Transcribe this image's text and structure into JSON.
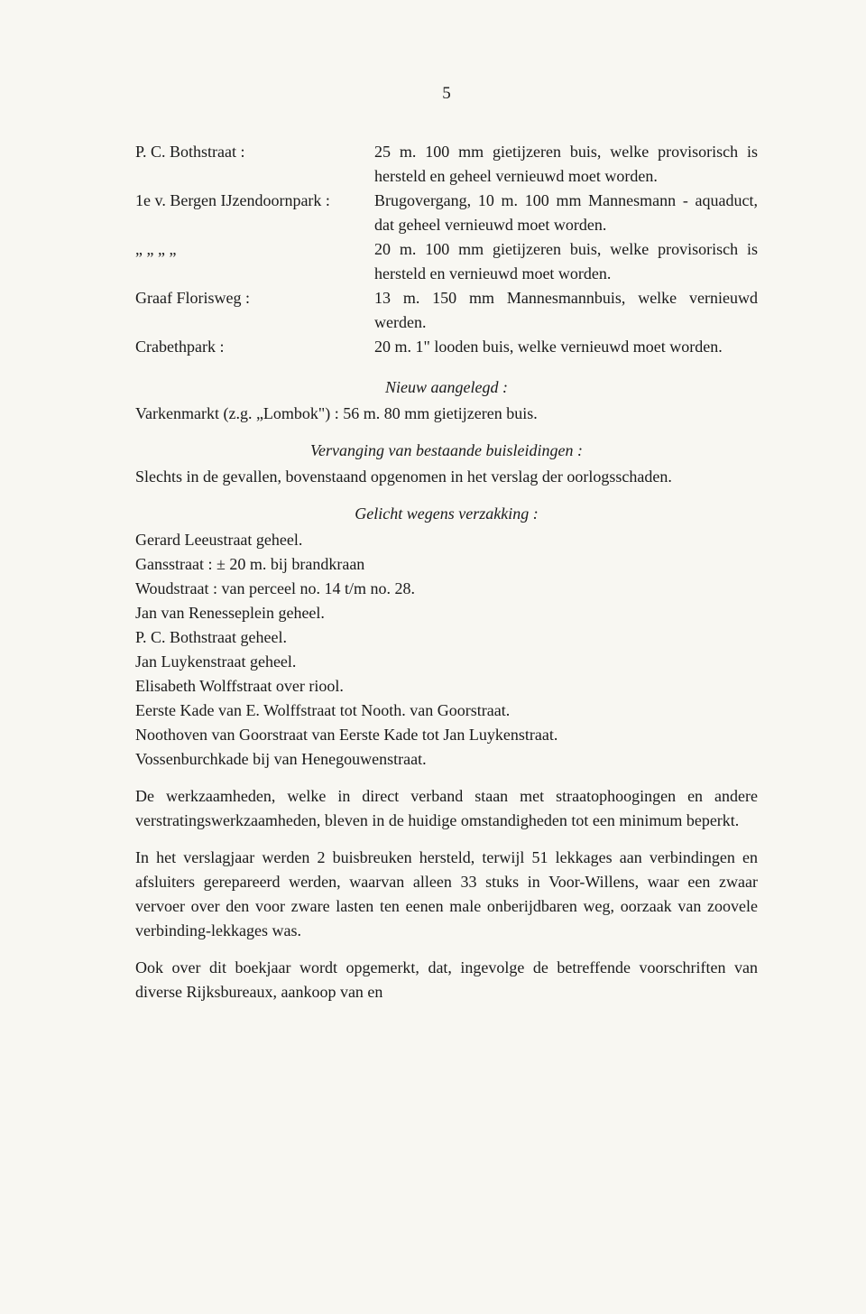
{
  "page_number": "5",
  "definitions": [
    {
      "term": "P. C. Bothstraat :",
      "desc": "25 m. 100 mm gietijzeren buis, welke provisorisch is hersteld en geheel vernieuwd moet worden."
    },
    {
      "term": "1e v. Bergen IJzendoornpark :",
      "desc": "Brugovergang, 10 m. 100 mm Mannesmann - aquaduct, dat geheel vernieuwd moet worden."
    },
    {
      "term": "„    „    „                „",
      "desc": "20 m. 100 mm gietijzeren buis, welke provisorisch is hersteld en vernieuwd moet worden."
    },
    {
      "term": "Graaf Florisweg :",
      "desc": "13 m. 150 mm Mannesmannbuis, welke vernieuwd werden."
    },
    {
      "term": "Crabethpark :",
      "desc": "20 m. 1\" looden buis, welke vernieuwd moet worden."
    }
  ],
  "heading_nieuw": "Nieuw aangelegd :",
  "nieuw_entry": "Varkenmarkt (z.g. „Lombok\") :   56 m. 80 mm gietijzeren buis.",
  "heading_vervanging": "Vervanging van bestaande buisleidingen :",
  "vervanging_para": "Slechts in de gevallen, bovenstaand opgenomen in het verslag der oorlogsschaden.",
  "heading_gelicht": "Gelicht wegens verzakking :",
  "gelicht_lines": [
    "Gerard Leeustraat geheel.",
    "Gansstraat : ± 20 m. bij brandkraan",
    "Woudstraat : van perceel no. 14 t/m no. 28.",
    "Jan van Renesseplein geheel.",
    "P. C. Bothstraat geheel.",
    "Jan Luykenstraat geheel.",
    "Elisabeth Wolffstraat over riool.",
    "Eerste Kade van E. Wolffstraat tot Nooth. van Goorstraat.",
    "Noothoven van Goorstraat van Eerste Kade tot Jan Luykenstraat.",
    "Vossenburchkade bij van Henegouwenstraat."
  ],
  "para1": "De werkzaamheden, welke in direct verband staan met straatophoogingen en andere verstratingswerkzaamheden, bleven in de huidige omstandigheden tot een minimum beperkt.",
  "para2": "In het verslagjaar werden 2 buisbreuken hersteld, terwijl 51 lekkages aan verbindingen en afsluiters gerepareerd werden, waarvan alleen 33 stuks in Voor-Willens, waar een zwaar vervoer over den voor zware lasten ten eenen male onberijdbaren weg, oorzaak van zoovele verbinding-lekkages was.",
  "para3": "Ook over dit boekjaar wordt opgemerkt, dat, ingevolge de betreffende voorschriften van diverse Rijksbureaux, aankoop van en"
}
